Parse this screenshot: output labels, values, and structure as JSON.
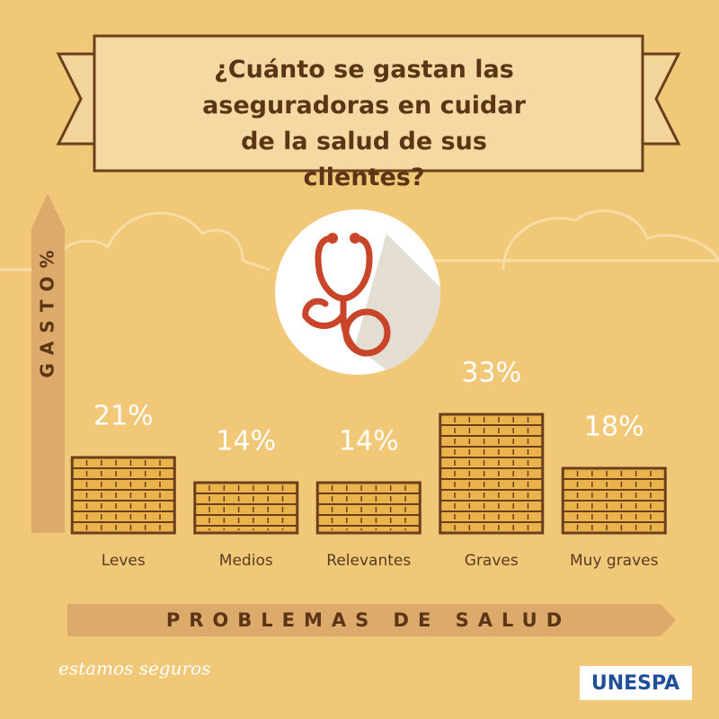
{
  "chart_data": {
    "type": "bar",
    "title": "¿Cuánto se gastan las aseguradoras en cuidar de la salud de sus clientes?",
    "y_label": "GASTO%",
    "x_label": "PROBLEMAS DE SALUD",
    "categories": [
      "Leves",
      "Medios",
      "Relevantes",
      "Graves",
      "Muy graves"
    ],
    "values": [
      21,
      14,
      14,
      33,
      18
    ],
    "value_labels": [
      "21%",
      "14%",
      "14%",
      "33%",
      "18%"
    ],
    "color": "#eab34c"
  },
  "branding": {
    "left": "estamos seguros",
    "right": "UNESPA"
  }
}
